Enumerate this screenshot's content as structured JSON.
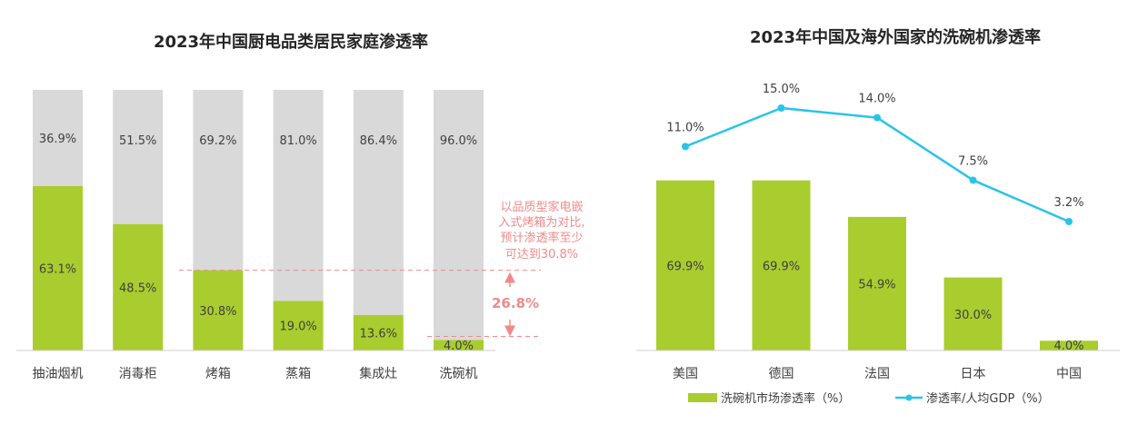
{
  "colors": {
    "green": "#a9cd2e",
    "gray": "#d9d9d9",
    "cyan": "#29c3ea",
    "annotation_red": "#f08a8a",
    "text": "#404040",
    "title": "#262626"
  },
  "chart_data": [
    {
      "type": "bar",
      "stacked": true,
      "title": "2023年中国厨电品类居民家庭渗透率",
      "categories": [
        "抽油烟机",
        "消毒柜",
        "烤箱",
        "蒸箱",
        "集成灶",
        "洗碗机"
      ],
      "series": [
        {
          "color": "#a9cd2e",
          "values": [
            63.1,
            48.5,
            30.8,
            19.0,
            13.6,
            4.0
          ]
        },
        {
          "color": "#d9d9d9",
          "values": [
            36.9,
            51.5,
            69.2,
            81.0,
            86.4,
            96.0
          ]
        }
      ],
      "value_labels": {
        "penetrated": [
          "63.1%",
          "48.5%",
          "30.8%",
          "19.0%",
          "13.6%",
          "4.0%"
        ],
        "remaining": [
          "36.9%",
          "51.5%",
          "69.2%",
          "81.0%",
          "86.4%",
          "96.0%"
        ]
      },
      "ylim": [
        0,
        100
      ],
      "annotation": {
        "lines": [
          "以品质型家电嵌",
          "入式烤箱为对比,",
          "预计渗透率至少",
          "可达到30.8%"
        ],
        "reference_value": 30.8,
        "target_category": "洗碗机",
        "gap_label": "26.8%"
      }
    },
    {
      "type": "bar+line",
      "title": "2023年中国及海外国家的洗碗机渗透率",
      "categories": [
        "美国",
        "德国",
        "法国",
        "日本",
        "中国"
      ],
      "series": [
        {
          "name": "洗碗机市场渗透率（%）",
          "type": "bar",
          "color": "#a9cd2e",
          "values": [
            69.9,
            69.9,
            54.9,
            30.0,
            4.0
          ],
          "labels": [
            "69.9%",
            "69.9%",
            "54.9%",
            "30.0%",
            "4.0%"
          ]
        },
        {
          "name": "渗透率/人均GDP（%）",
          "type": "line",
          "color": "#29c3ea",
          "values": [
            11.0,
            15.0,
            14.0,
            7.5,
            3.2
          ],
          "labels": [
            "11.0%",
            "15.0%",
            "14.0%",
            "7.5%",
            "3.2%"
          ]
        }
      ],
      "bar_ylim": [
        0,
        100
      ],
      "line_ylim": [
        0,
        26
      ],
      "legend_position": "bottom"
    }
  ]
}
